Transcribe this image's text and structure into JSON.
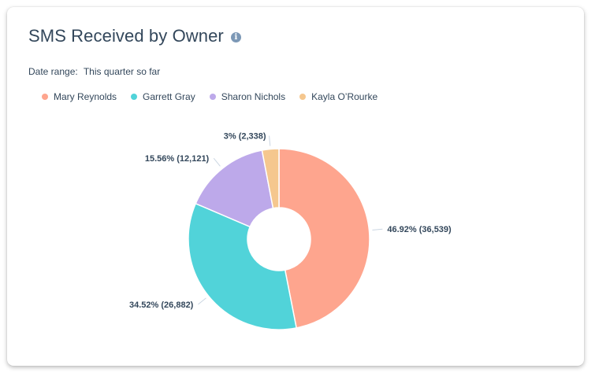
{
  "title": "SMS Received by Owner",
  "info_icon": "info-icon",
  "date_range": {
    "label": "Date range:",
    "value": "This quarter so far"
  },
  "colors": {
    "Mary Reynolds": "#fea58e",
    "Garrett Gray": "#51d3d9",
    "Sharon Nichols": "#bda9ea",
    "Kayla O’Rourke": "#f5c78e"
  },
  "chart_data": {
    "type": "pie",
    "donut": true,
    "legend_position": "top-left",
    "series": [
      {
        "name": "Mary Reynolds",
        "value": 36539,
        "percent": 46.92,
        "label": "46.92% (36,539)"
      },
      {
        "name": "Garrett Gray",
        "value": 26882,
        "percent": 34.52,
        "label": "34.52% (26,882)"
      },
      {
        "name": "Sharon Nichols",
        "value": 12121,
        "percent": 15.56,
        "label": "15.56% (12,121)"
      },
      {
        "name": "Kayla O’Rourke",
        "value": 2338,
        "percent": 3,
        "label": "3% (2,338)"
      }
    ]
  }
}
